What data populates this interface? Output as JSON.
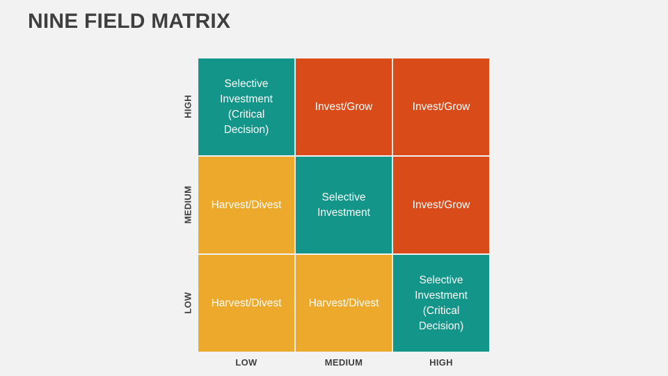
{
  "title": "NINE FIELD MATRIX",
  "colors": {
    "teal": "#13958a",
    "orange": "#d94c1a",
    "yellow": "#eda92b"
  },
  "y_axis": [
    "HIGH",
    "MEDIUM",
    "LOW"
  ],
  "x_axis": [
    "LOW",
    "MEDIUM",
    "HIGH"
  ],
  "rows": [
    [
      {
        "text": "Selective\nInvestment\n(Critical\nDecision)",
        "color": "teal"
      },
      {
        "text": "Invest/Grow",
        "color": "orange"
      },
      {
        "text": "Invest/Grow",
        "color": "orange"
      }
    ],
    [
      {
        "text": "Harvest/Divest",
        "color": "yellow"
      },
      {
        "text": "Selective\nInvestment",
        "color": "teal"
      },
      {
        "text": "Invest/Grow",
        "color": "orange"
      }
    ],
    [
      {
        "text": "Harvest/Divest",
        "color": "yellow"
      },
      {
        "text": "Harvest/Divest",
        "color": "yellow"
      },
      {
        "text": "Selective\nInvestment\n(Critical\nDecision)",
        "color": "teal"
      }
    ]
  ]
}
